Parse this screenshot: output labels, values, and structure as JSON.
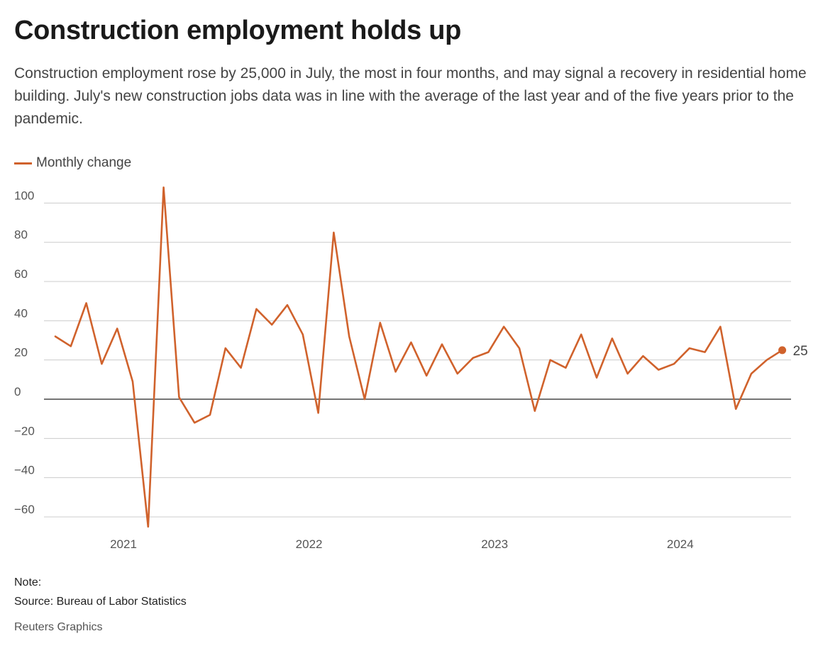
{
  "header": {
    "title": "Construction employment holds up",
    "subtitle": "Construction employment rose by 25,000 in July, the most in four months, and may signal a recovery in residential home building. July's new construction jobs data was in line with the average of the last year and of the five years prior to the pandemic."
  },
  "footer": {
    "note": "Note:",
    "source": "Source: Bureau of Labor Statistics",
    "credit": "Reuters Graphics"
  },
  "chart_data": {
    "type": "line",
    "x": [
      "2020-08",
      "2020-09",
      "2020-10",
      "2020-11",
      "2020-12",
      "2021-01",
      "2021-02",
      "2021-03",
      "2021-04",
      "2021-05",
      "2021-06",
      "2021-07",
      "2021-08",
      "2021-09",
      "2021-10",
      "2021-11",
      "2021-12",
      "2022-01",
      "2022-02",
      "2022-03",
      "2022-04",
      "2022-05",
      "2022-06",
      "2022-07",
      "2022-08",
      "2022-09",
      "2022-10",
      "2022-11",
      "2022-12",
      "2023-01",
      "2023-02",
      "2023-03",
      "2023-04",
      "2023-05",
      "2023-06",
      "2023-07",
      "2023-08",
      "2023-09",
      "2023-10",
      "2023-11",
      "2023-12",
      "2024-01",
      "2024-02",
      "2024-03",
      "2024-04",
      "2024-05",
      "2024-06",
      "2024-07"
    ],
    "series": [
      {
        "name": "Monthly change",
        "color": "#d0622c",
        "values": [
          32,
          27,
          49,
          18,
          36,
          9,
          -65,
          108,
          1,
          -12,
          -8,
          26,
          16,
          46,
          38,
          48,
          33,
          -7,
          85,
          32,
          0,
          39,
          14,
          29,
          12,
          28,
          13,
          21,
          24,
          37,
          26,
          -6,
          20,
          16,
          33,
          11,
          31,
          13,
          22,
          15,
          18,
          26,
          24,
          37,
          -5,
          13,
          20,
          25
        ]
      }
    ],
    "end_label": "25",
    "x_ticks": [
      {
        "value": "2021-01",
        "label": "2021"
      },
      {
        "value": "2022-01",
        "label": "2022"
      },
      {
        "value": "2023-01",
        "label": "2023"
      },
      {
        "value": "2024-01",
        "label": "2024"
      }
    ],
    "y_ticks": [
      100,
      80,
      60,
      40,
      20,
      0,
      -20,
      -40,
      -60
    ],
    "y_tick_labels": [
      "100",
      "80",
      "60",
      "40",
      "20",
      "0",
      "−20",
      "−40",
      "−60"
    ],
    "ylim": [
      -68,
      110
    ],
    "xlabel": "",
    "ylabel": "",
    "grid": true,
    "zero_line": true,
    "legend": "top-left"
  }
}
